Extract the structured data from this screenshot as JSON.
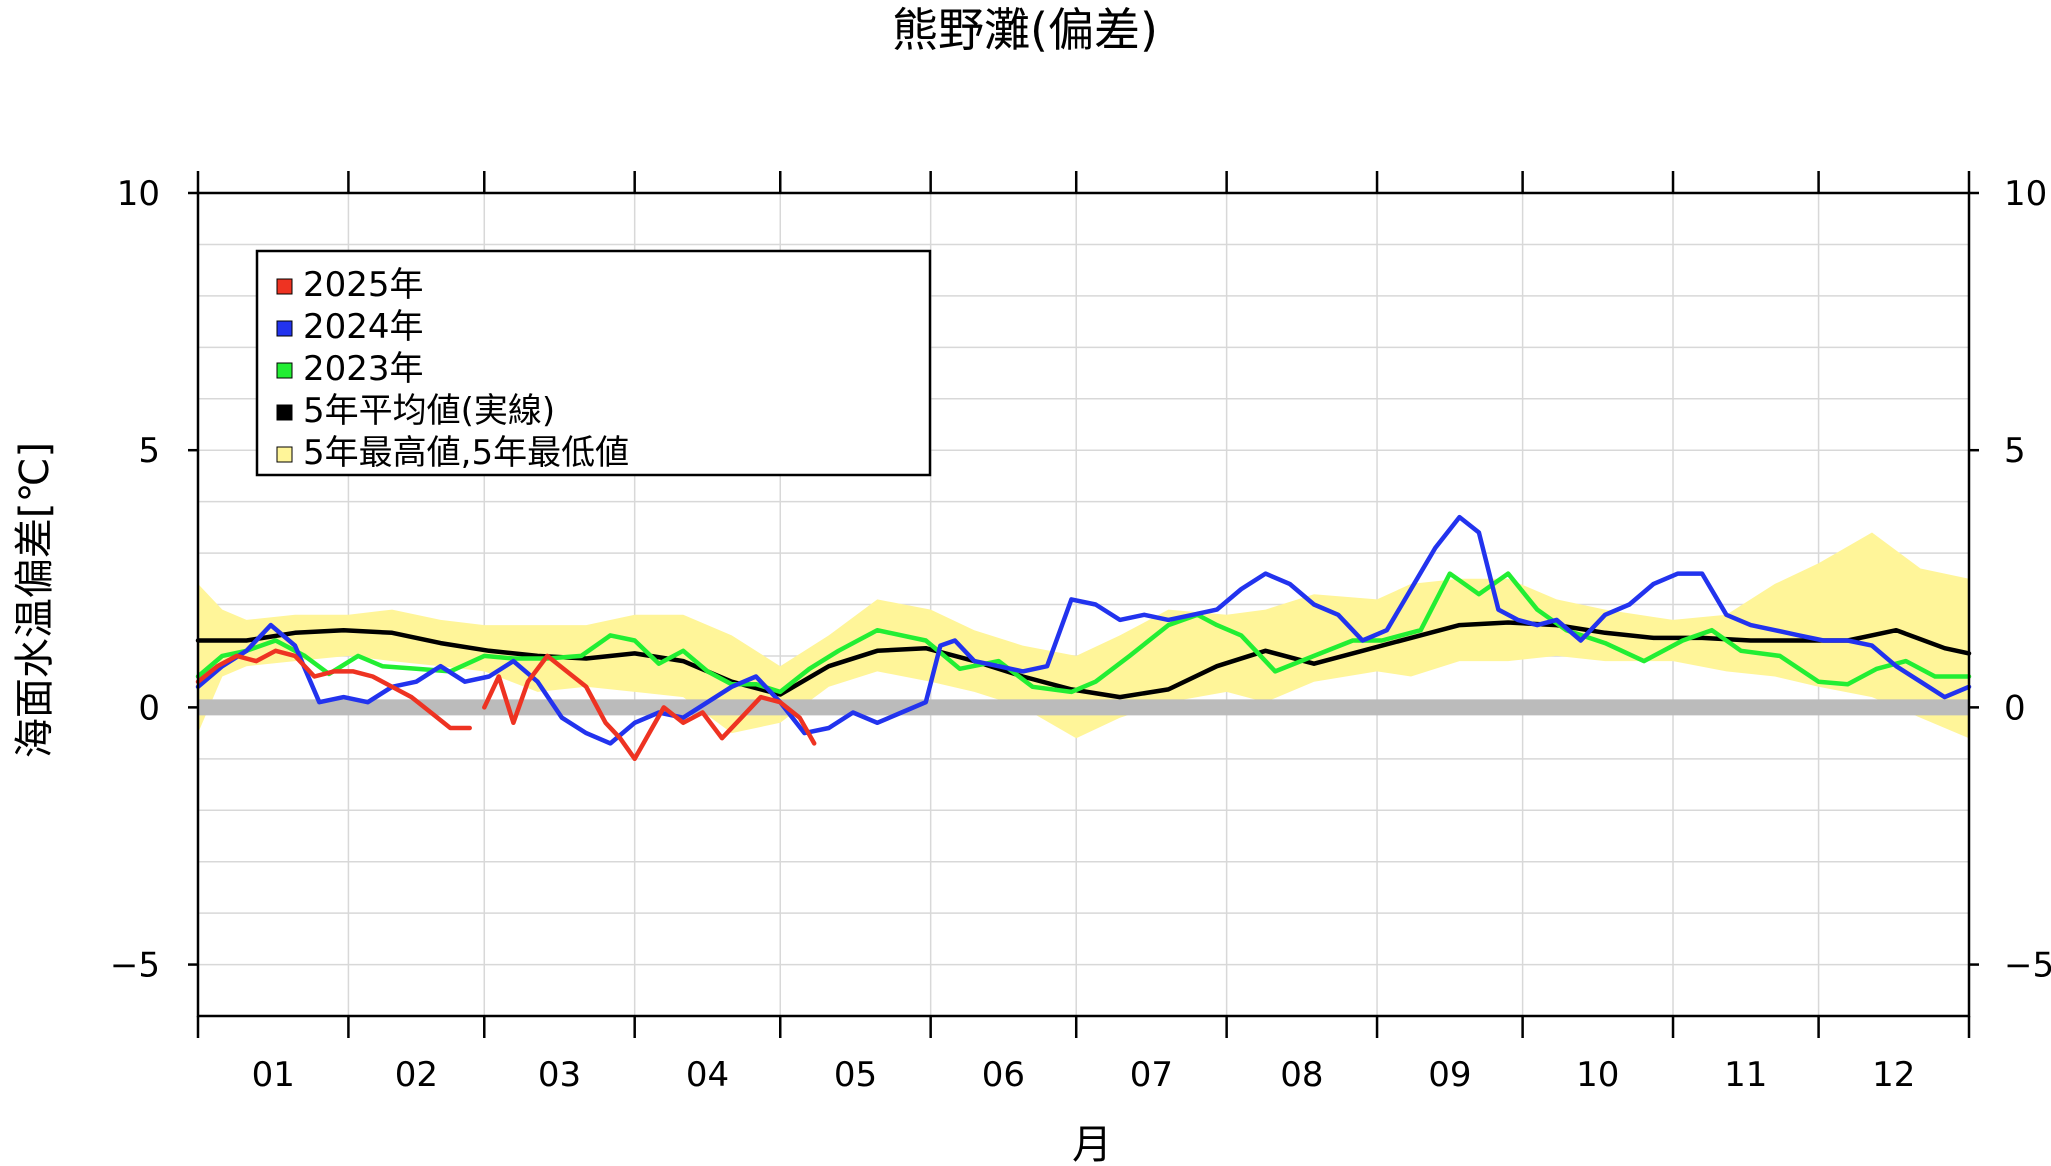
{
  "chart_data": {
    "type": "line",
    "title": "熊野灘(偏差)",
    "xlabel": "月",
    "ylabel": "海面水温偏差[℃]",
    "ylim": [
      -6,
      10
    ],
    "xlim": [
      0,
      365
    ],
    "yticks": [
      -5,
      0,
      5,
      10
    ],
    "ytick_labels": [
      "−5",
      "0",
      "5",
      "10"
    ],
    "month_labels": [
      "01",
      "02",
      "03",
      "04",
      "05",
      "06",
      "07",
      "08",
      "09",
      "10",
      "11",
      "12"
    ],
    "month_starts": [
      0,
      31,
      59,
      90,
      120,
      151,
      181,
      212,
      243,
      273,
      304,
      334,
      365
    ],
    "grid": true,
    "legend_placement": "top-left",
    "zero_line_color": "#bbbbbb",
    "legend": [
      {
        "label": "2025年",
        "color": "#ee3322"
      },
      {
        "label": "2024年",
        "color": "#2233ee"
      },
      {
        "label": "2023年",
        "color": "#22ee33"
      },
      {
        "label": "5年平均値(実線)",
        "color": "#000000"
      },
      {
        "label": "5年最高値,5年最低値",
        "color": "#fff599"
      }
    ],
    "band": {
      "name": "5年最高値,5年最低値",
      "color": "#fff599",
      "x": [
        0,
        5,
        10,
        20,
        31,
        40,
        50,
        59,
        70,
        80,
        90,
        100,
        110,
        120,
        130,
        140,
        151,
        160,
        170,
        181,
        190,
        200,
        212,
        220,
        230,
        243,
        250,
        260,
        270,
        280,
        290,
        304,
        315,
        325,
        334,
        345,
        355,
        365
      ],
      "high": [
        2.4,
        1.9,
        1.7,
        1.8,
        1.8,
        1.9,
        1.7,
        1.6,
        1.6,
        1.6,
        1.8,
        1.8,
        1.4,
        0.8,
        1.4,
        2.1,
        1.9,
        1.5,
        1.2,
        1.0,
        1.4,
        1.9,
        1.8,
        1.9,
        2.2,
        2.1,
        2.4,
        2.5,
        2.5,
        2.1,
        1.9,
        1.7,
        1.8,
        2.4,
        2.8,
        3.4,
        2.7,
        2.5
      ],
      "low": [
        -0.5,
        0.6,
        0.8,
        0.9,
        1.0,
        0.9,
        0.8,
        0.7,
        0.3,
        0.4,
        0.3,
        0.2,
        -0.5,
        -0.3,
        0.4,
        0.7,
        0.5,
        0.3,
        0.0,
        -0.6,
        -0.2,
        0.1,
        0.3,
        0.1,
        0.5,
        0.7,
        0.6,
        0.9,
        0.9,
        1.0,
        0.9,
        0.9,
        0.7,
        0.6,
        0.4,
        0.2,
        -0.2,
        -0.6
      ]
    },
    "series": [
      {
        "name": "5年平均値(実線)",
        "color": "#000000",
        "x": [
          0,
          10,
          20,
          30,
          40,
          50,
          60,
          70,
          80,
          90,
          100,
          110,
          120,
          130,
          140,
          150,
          160,
          170,
          180,
          190,
          200,
          210,
          220,
          230,
          240,
          250,
          260,
          270,
          280,
          290,
          300,
          310,
          320,
          330,
          340,
          350,
          360,
          365
        ],
        "y": [
          1.3,
          1.3,
          1.45,
          1.5,
          1.45,
          1.25,
          1.1,
          1.0,
          0.95,
          1.05,
          0.9,
          0.5,
          0.25,
          0.8,
          1.1,
          1.15,
          0.9,
          0.6,
          0.35,
          0.2,
          0.35,
          0.8,
          1.1,
          0.85,
          1.1,
          1.35,
          1.6,
          1.65,
          1.6,
          1.45,
          1.35,
          1.35,
          1.3,
          1.3,
          1.3,
          1.5,
          1.15,
          1.05
        ]
      },
      {
        "name": "2023年",
        "color": "#22ee33",
        "x": [
          0,
          5,
          10,
          16,
          22,
          27,
          33,
          38,
          45,
          52,
          59,
          65,
          72,
          79,
          85,
          90,
          95,
          100,
          105,
          110,
          115,
          120,
          126,
          132,
          140,
          150,
          157,
          165,
          172,
          180,
          185,
          192,
          200,
          206,
          210,
          215,
          222,
          230,
          238,
          244,
          252,
          258,
          264,
          270,
          276,
          282,
          290,
          298,
          306,
          312,
          318,
          326,
          334,
          340,
          346,
          352,
          358,
          365
        ],
        "y": [
          0.6,
          1.0,
          1.1,
          1.3,
          1.0,
          0.65,
          1.0,
          0.8,
          0.75,
          0.7,
          1.0,
          0.95,
          0.95,
          1.0,
          1.4,
          1.3,
          0.85,
          1.1,
          0.7,
          0.45,
          0.45,
          0.3,
          0.75,
          1.1,
          1.5,
          1.3,
          0.75,
          0.9,
          0.4,
          0.3,
          0.5,
          1.0,
          1.6,
          1.8,
          1.6,
          1.4,
          0.7,
          1.0,
          1.3,
          1.3,
          1.5,
          2.6,
          2.2,
          2.6,
          1.9,
          1.5,
          1.25,
          0.9,
          1.3,
          1.5,
          1.1,
          1.0,
          0.5,
          0.45,
          0.75,
          0.9,
          0.6,
          0.6
        ]
      },
      {
        "name": "2024年",
        "color": "#2233ee",
        "x": [
          0,
          5,
          10,
          15,
          20,
          25,
          30,
          35,
          40,
          45,
          50,
          55,
          60,
          65,
          70,
          75,
          80,
          85,
          90,
          95,
          100,
          105,
          110,
          115,
          120,
          125,
          130,
          135,
          140,
          145,
          150,
          153,
          156,
          160,
          165,
          170,
          175,
          180,
          185,
          190,
          195,
          200,
          205,
          210,
          215,
          220,
          225,
          230,
          235,
          240,
          245,
          250,
          255,
          260,
          264,
          268,
          272,
          276,
          280,
          285,
          290,
          295,
          300,
          305,
          310,
          315,
          320,
          325,
          330,
          335,
          340,
          345,
          350,
          355,
          360,
          365
        ],
        "y": [
          0.4,
          0.8,
          1.1,
          1.6,
          1.2,
          0.1,
          0.2,
          0.1,
          0.4,
          0.5,
          0.8,
          0.5,
          0.6,
          0.9,
          0.5,
          -0.2,
          -0.5,
          -0.7,
          -0.3,
          -0.1,
          -0.2,
          0.1,
          0.4,
          0.6,
          0.1,
          -0.5,
          -0.4,
          -0.1,
          -0.3,
          -0.1,
          0.1,
          1.2,
          1.3,
          0.9,
          0.8,
          0.7,
          0.8,
          2.1,
          2.0,
          1.7,
          1.8,
          1.7,
          1.8,
          1.9,
          2.3,
          2.6,
          2.4,
          2.0,
          1.8,
          1.3,
          1.5,
          2.3,
          3.1,
          3.7,
          3.4,
          1.9,
          1.7,
          1.6,
          1.7,
          1.3,
          1.8,
          2.0,
          2.4,
          2.6,
          2.6,
          1.8,
          1.6,
          1.5,
          1.4,
          1.3,
          1.3,
          1.2,
          0.8,
          0.5,
          0.2,
          0.4
        ]
      },
      {
        "name": "2025年",
        "color": "#ee3322",
        "segments": [
          {
            "x": [
              0,
              4,
              8,
              12,
              16,
              20,
              24,
              28,
              32,
              36,
              40,
              44,
              48,
              52,
              56
            ],
            "y": [
              0.5,
              0.8,
              1.0,
              0.9,
              1.1,
              1.0,
              0.6,
              0.7,
              0.7,
              0.6,
              0.4,
              0.2,
              -0.1,
              -0.4,
              -0.4
            ]
          },
          {
            "x": [
              59,
              62,
              65,
              68,
              72,
              76,
              80,
              84,
              87,
              90,
              93,
              96,
              100,
              104,
              108,
              112,
              116,
              120,
              124,
              127
            ],
            "y": [
              0.0,
              0.6,
              -0.3,
              0.5,
              1.0,
              0.7,
              0.4,
              -0.3,
              -0.6,
              -1.0,
              -0.5,
              0.0,
              -0.3,
              -0.1,
              -0.6,
              -0.2,
              0.2,
              0.1,
              -0.2,
              -0.7
            ]
          }
        ]
      }
    ]
  }
}
